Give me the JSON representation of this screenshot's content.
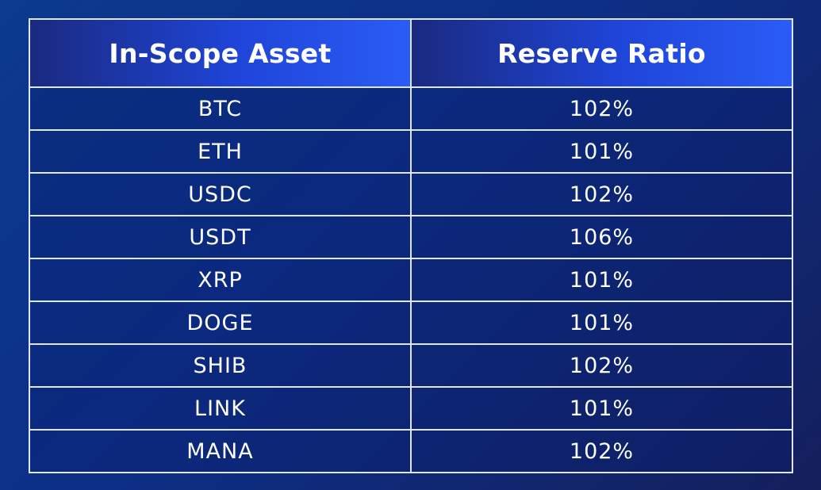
{
  "chart_data": {
    "type": "table",
    "columns": [
      "In-Scope Asset",
      "Reserve Ratio"
    ],
    "rows": [
      [
        "BTC",
        "102%"
      ],
      [
        "ETH",
        "101%"
      ],
      [
        "USDC",
        "102%"
      ],
      [
        "USDT",
        "106%"
      ],
      [
        "XRP",
        "101%"
      ],
      [
        "DOGE",
        "101%"
      ],
      [
        "SHIB",
        "102%"
      ],
      [
        "LINK",
        "101%"
      ],
      [
        "MANA",
        "102%"
      ]
    ],
    "values": [
      102,
      101,
      102,
      106,
      101,
      101,
      102,
      101,
      102
    ],
    "title": ""
  },
  "colors": {
    "background_start": "#0b3a8e",
    "background_end": "#141f5c",
    "header_start": "#1a2a80",
    "header_end": "#2a5cf6",
    "border": "#dfe6f7",
    "text": "#ffffff"
  }
}
